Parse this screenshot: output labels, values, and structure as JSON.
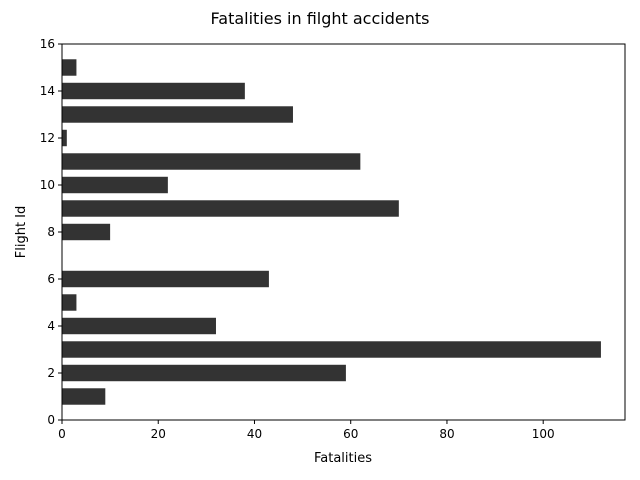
{
  "chart_data": {
    "type": "bar",
    "orientation": "horizontal",
    "title": "Fatalities in filght accidents",
    "xlabel": "Fatalities",
    "ylabel": "Flight Id",
    "xlim": [
      0,
      117
    ],
    "ylim": [
      0,
      16
    ],
    "xticks": [
      0,
      20,
      40,
      60,
      80,
      100
    ],
    "yticks": [
      0,
      2,
      4,
      6,
      8,
      10,
      12,
      14,
      16
    ],
    "grid": false,
    "bar_color": "#333333",
    "bars": [
      {
        "flight_id": 1,
        "value": 9
      },
      {
        "flight_id": 2,
        "value": 59
      },
      {
        "flight_id": 3,
        "value": 112
      },
      {
        "flight_id": 4,
        "value": 32
      },
      {
        "flight_id": 5,
        "value": 3
      },
      {
        "flight_id": 6,
        "value": 43
      },
      {
        "flight_id": 8,
        "value": 10
      },
      {
        "flight_id": 9,
        "value": 70
      },
      {
        "flight_id": 10,
        "value": 22
      },
      {
        "flight_id": 11,
        "value": 62
      },
      {
        "flight_id": 12,
        "value": 1
      },
      {
        "flight_id": 13,
        "value": 48
      },
      {
        "flight_id": 14,
        "value": 38
      },
      {
        "flight_id": 15,
        "value": 3
      }
    ]
  }
}
